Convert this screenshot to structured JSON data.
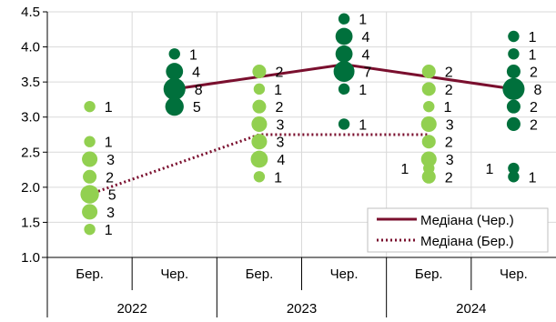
{
  "chart_data": {
    "type": "scatter",
    "title": "",
    "xlabel": "",
    "ylabel": "",
    "ylim": [
      1.0,
      4.5
    ],
    "y_ticks": [
      "1.0",
      "1.5",
      "2.0",
      "2.5",
      "3.0",
      "3.5",
      "4.0",
      "4.5"
    ],
    "grid": true,
    "legend_position": "bottom-right",
    "categories": [
      "Бер.",
      "Чер.",
      "Бер.",
      "Чер.",
      "Бер.",
      "Чер."
    ],
    "years": [
      "2022",
      "2023",
      "2024"
    ],
    "colors": {
      "march": "#92d050",
      "june": "#00703c",
      "median_june": "#7a0f2e",
      "median_march": "#7a0f2e"
    },
    "series": [
      {
        "name": "Медіана (Чер.)",
        "style": "solid",
        "color": "#7a0f2e",
        "points": [
          {
            "x": 1,
            "y": 3.4
          },
          {
            "x": 3,
            "y": 3.75
          },
          {
            "x": 5,
            "y": 3.4
          }
        ]
      },
      {
        "name": "Медіана (Бер.)",
        "style": "dotted",
        "color": "#7a0f2e",
        "points": [
          {
            "x": 0,
            "y": 1.9
          },
          {
            "x": 2,
            "y": 2.75
          },
          {
            "x": 4,
            "y": 2.75
          }
        ]
      }
    ],
    "bubbles": [
      {
        "x": 0,
        "y": 3.15,
        "count": 1,
        "label": "1"
      },
      {
        "x": 0,
        "y": 2.65,
        "count": 1,
        "label": "1"
      },
      {
        "x": 0,
        "y": 2.4,
        "count": 3,
        "label": "3"
      },
      {
        "x": 0,
        "y": 2.15,
        "count": 2,
        "label": "2"
      },
      {
        "x": 0,
        "y": 1.9,
        "count": 5,
        "label": "5"
      },
      {
        "x": 0,
        "y": 1.65,
        "count": 3,
        "label": "3"
      },
      {
        "x": 0,
        "y": 1.4,
        "count": 1,
        "label": "1"
      },
      {
        "x": 1,
        "y": 3.9,
        "count": 1,
        "label": "1"
      },
      {
        "x": 1,
        "y": 3.65,
        "count": 4,
        "label": "4"
      },
      {
        "x": 1,
        "y": 3.4,
        "count": 8,
        "label": "8"
      },
      {
        "x": 1,
        "y": 3.15,
        "count": 5,
        "label": "5"
      },
      {
        "x": 2,
        "y": 3.65,
        "count": 2,
        "label": "2"
      },
      {
        "x": 2,
        "y": 3.4,
        "count": 1,
        "label": "1"
      },
      {
        "x": 2,
        "y": 3.15,
        "count": 2,
        "label": "2"
      },
      {
        "x": 2,
        "y": 2.9,
        "count": 3,
        "label": "3"
      },
      {
        "x": 2,
        "y": 2.65,
        "count": 3,
        "label": "3"
      },
      {
        "x": 2,
        "y": 2.4,
        "count": 4,
        "label": "4"
      },
      {
        "x": 2,
        "y": 2.15,
        "count": 1,
        "label": "1"
      },
      {
        "x": 3,
        "y": 4.4,
        "count": 1,
        "label": "1"
      },
      {
        "x": 3,
        "y": 4.15,
        "count": 4,
        "label": "4"
      },
      {
        "x": 3,
        "y": 3.9,
        "count": 4,
        "label": "4"
      },
      {
        "x": 3,
        "y": 3.65,
        "count": 7,
        "label": "7"
      },
      {
        "x": 3,
        "y": 3.4,
        "count": 1,
        "label": "1"
      },
      {
        "x": 3,
        "y": 2.9,
        "count": 1,
        "label": "1"
      },
      {
        "x": 4,
        "y": 3.65,
        "count": 2,
        "label": "2"
      },
      {
        "x": 4,
        "y": 3.4,
        "count": 2,
        "label": "2"
      },
      {
        "x": 4,
        "y": 3.15,
        "count": 1,
        "label": "1"
      },
      {
        "x": 4,
        "y": 2.9,
        "count": 3,
        "label": "3"
      },
      {
        "x": 4,
        "y": 2.65,
        "count": 2,
        "label": "2"
      },
      {
        "x": 4,
        "y": 2.4,
        "count": 3,
        "label": "3"
      },
      {
        "x": 4,
        "y": 2.15,
        "count": 2,
        "label": "2"
      },
      {
        "x": 4,
        "y": 2.27,
        "count": 1,
        "label": "1",
        "label_side": "left"
      },
      {
        "x": 5,
        "y": 4.15,
        "count": 1,
        "label": "1"
      },
      {
        "x": 5,
        "y": 3.9,
        "count": 1,
        "label": "1"
      },
      {
        "x": 5,
        "y": 3.65,
        "count": 2,
        "label": "2"
      },
      {
        "x": 5,
        "y": 3.4,
        "count": 8,
        "label": "8"
      },
      {
        "x": 5,
        "y": 3.15,
        "count": 2,
        "label": "2"
      },
      {
        "x": 5,
        "y": 2.9,
        "count": 2,
        "label": "2"
      },
      {
        "x": 5,
        "y": 2.27,
        "count": 1,
        "label": "1",
        "label_side": "left"
      },
      {
        "x": 5,
        "y": 2.15,
        "count": 1,
        "label": "1"
      }
    ]
  }
}
